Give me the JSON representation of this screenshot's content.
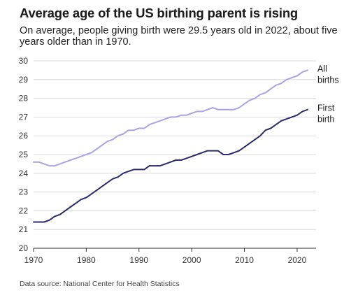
{
  "header": {
    "title": "Average age of the US birthing parent is rising",
    "subtitle": "On average, people giving birth were 29.5 years old in 2022, about five years older than in 1970."
  },
  "footer": {
    "source": "Data source: National Center for Health Statistics"
  },
  "chart_data": {
    "type": "line",
    "xlim": [
      1970,
      2022
    ],
    "ylim": [
      20,
      30
    ],
    "x_ticks": [
      1970,
      1980,
      1990,
      2000,
      2010,
      2020
    ],
    "y_ticks": [
      20,
      21,
      22,
      23,
      24,
      25,
      26,
      27,
      28,
      29,
      30
    ],
    "grid": "horizontal",
    "legend": "direct-labels-right",
    "x": [
      1970,
      1971,
      1972,
      1973,
      1974,
      1975,
      1976,
      1977,
      1978,
      1979,
      1980,
      1981,
      1982,
      1983,
      1984,
      1985,
      1986,
      1987,
      1988,
      1989,
      1990,
      1991,
      1992,
      1993,
      1994,
      1995,
      1996,
      1997,
      1998,
      1999,
      2000,
      2001,
      2002,
      2003,
      2004,
      2005,
      2006,
      2007,
      2008,
      2009,
      2010,
      2011,
      2012,
      2013,
      2014,
      2015,
      2016,
      2017,
      2018,
      2019,
      2020,
      2021,
      2022
    ],
    "series": [
      {
        "name": "All births",
        "label_lines": [
          "All",
          "births"
        ],
        "color": "#a9a3e3",
        "values": [
          24.6,
          24.6,
          24.5,
          24.4,
          24.4,
          24.5,
          24.6,
          24.7,
          24.8,
          24.9,
          25.0,
          25.1,
          25.3,
          25.5,
          25.7,
          25.8,
          26.0,
          26.1,
          26.3,
          26.3,
          26.4,
          26.4,
          26.6,
          26.7,
          26.8,
          26.9,
          27.0,
          27.0,
          27.1,
          27.1,
          27.2,
          27.3,
          27.3,
          27.4,
          27.5,
          27.4,
          27.4,
          27.4,
          27.4,
          27.5,
          27.7,
          27.9,
          28.0,
          28.2,
          28.3,
          28.5,
          28.7,
          28.8,
          29.0,
          29.1,
          29.2,
          29.4,
          29.5
        ]
      },
      {
        "name": "First birth",
        "label_lines": [
          "First",
          "birth"
        ],
        "color": "#2b2a6b",
        "values": [
          21.4,
          21.4,
          21.4,
          21.5,
          21.7,
          21.8,
          22.0,
          22.2,
          22.4,
          22.6,
          22.7,
          22.9,
          23.1,
          23.3,
          23.5,
          23.7,
          23.8,
          24.0,
          24.1,
          24.2,
          24.2,
          24.2,
          24.4,
          24.4,
          24.4,
          24.5,
          24.6,
          24.7,
          24.7,
          24.8,
          24.9,
          25.0,
          25.1,
          25.2,
          25.2,
          25.2,
          25.0,
          25.0,
          25.1,
          25.2,
          25.4,
          25.6,
          25.8,
          26.0,
          26.3,
          26.4,
          26.6,
          26.8,
          26.9,
          27.0,
          27.1,
          27.3,
          27.4
        ]
      }
    ]
  }
}
